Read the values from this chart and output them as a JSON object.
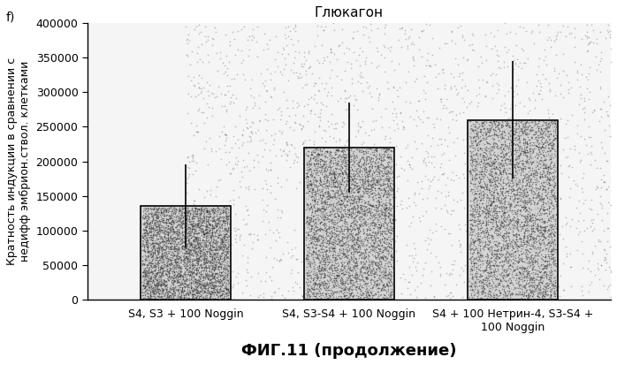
{
  "title": "Глюкагон",
  "categories": [
    "S4, S3 + 100 Noggin",
    "S4, S3-S4 + 100 Noggin",
    "S4 + 100 Нетрин-4, S3-S4 +\n100 Noggin"
  ],
  "values": [
    135000,
    220000,
    260000
  ],
  "errors_up": [
    60000,
    65000,
    85000
  ],
  "errors_down": [
    60000,
    65000,
    85000
  ],
  "ylim": [
    0,
    400000
  ],
  "yticks": [
    0,
    50000,
    100000,
    150000,
    200000,
    250000,
    300000,
    350000,
    400000
  ],
  "ylabel": "Кратность индукции в сравнении с\nнедифф эмбрион.ствол. клетками",
  "xlabel": "ФИГ.11 (продолжение)",
  "bar_color": "#c8c8c8",
  "bar_edge_color": "#000000",
  "figure_label": "f)",
  "bar_width": 0.55,
  "title_fontsize": 11,
  "label_fontsize": 9,
  "tick_fontsize": 9,
  "xlabel_fontsize": 13,
  "ylabel_fontsize": 9
}
